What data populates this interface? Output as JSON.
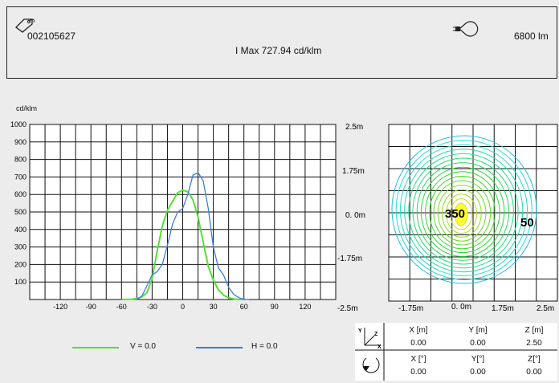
{
  "header": {
    "id": "002105627",
    "imax": "I Max 727.94 cd/klm",
    "lumens": "6800 lm",
    "tag_icon": "tag-icon",
    "bulb_icon": "bulb-icon"
  },
  "polar_chart": {
    "unit": "cd/klm",
    "y_ticks": [
      "1000",
      "900",
      "800",
      "700",
      "600",
      "500",
      "400",
      "300",
      "200",
      "100"
    ],
    "x_ticks": [
      "-120",
      "-90",
      "-60",
      "-30",
      "0",
      "30",
      "60",
      "90",
      "120"
    ],
    "legend": {
      "v": "V = 0.0",
      "h": "H = 0.0"
    }
  },
  "iso_chart": {
    "y_labels": [
      "2.5m",
      "1.75m",
      "0. 0m",
      "-1.75m"
    ],
    "x_labels": [
      "-2.5m",
      "-1.75m",
      "0. 0m",
      "1.75m",
      "2.5m"
    ],
    "label_inner": "350",
    "label_outer": "50"
  },
  "coords": {
    "axis_labels": {
      "y": "Y",
      "z": "Z",
      "x": "X"
    },
    "pos_headers": [
      "X [m]",
      "Y [m]",
      "Z [m]"
    ],
    "pos_values": [
      "0.00",
      "0.00",
      "2.50"
    ],
    "rot_headers": [
      "X [°]",
      "Y[°]",
      "Z[°]"
    ],
    "rot_values": [
      "0.00",
      "0.00",
      "0.00"
    ]
  },
  "chart_data": [
    {
      "type": "line",
      "ylabel": "cd/klm",
      "xlim": [
        -150,
        150
      ],
      "ylim": [
        0,
        1000
      ],
      "colors": {
        "V = 0.0": "#55e033",
        "H = 0.0": "#3a7fd6"
      },
      "series": [
        {
          "name": "V = 0.0",
          "x": [
            -60,
            -50,
            -45,
            -40,
            -35,
            -30,
            -25,
            -20,
            -15,
            -10,
            -5,
            0,
            5,
            10,
            15,
            20,
            25,
            30,
            35,
            40,
            45,
            50,
            55,
            60
          ],
          "y": [
            0,
            2,
            5,
            15,
            40,
            120,
            280,
            420,
            510,
            560,
            610,
            625,
            615,
            570,
            470,
            330,
            190,
            110,
            55,
            25,
            10,
            3,
            0,
            0
          ]
        },
        {
          "name": "H = 0.0",
          "x": [
            -45,
            -40,
            -35,
            -30,
            -25,
            -20,
            -15,
            -10,
            -5,
            0,
            5,
            10,
            15,
            20,
            25,
            30,
            35,
            40,
            45,
            50,
            55,
            60,
            65
          ],
          "y": [
            0,
            20,
            80,
            140,
            160,
            200,
            310,
            430,
            500,
            520,
            600,
            710,
            725,
            680,
            520,
            300,
            180,
            140,
            70,
            30,
            10,
            2,
            0
          ]
        }
      ]
    }
  ]
}
